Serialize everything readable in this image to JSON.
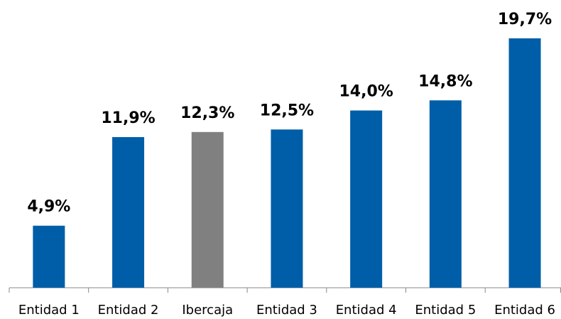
{
  "chart_data": {
    "type": "bar",
    "categories": [
      "Entidad 1",
      "Entidad 2",
      "Ibercaja",
      "Entidad 3",
      "Entidad 4",
      "Entidad 5",
      "Entidad 6"
    ],
    "values": [
      4.9,
      11.9,
      12.3,
      12.5,
      14.0,
      14.8,
      19.7
    ],
    "value_labels": [
      "4,9%",
      "11,9%",
      "12,3%",
      "12,5%",
      "14,0%",
      "14,8%",
      "19,7%"
    ],
    "colors": [
      "#005ea8",
      "#005ea8",
      "#808080",
      "#005ea8",
      "#005ea8",
      "#005ea8",
      "#005ea8"
    ],
    "ylim": [
      0,
      20
    ]
  }
}
